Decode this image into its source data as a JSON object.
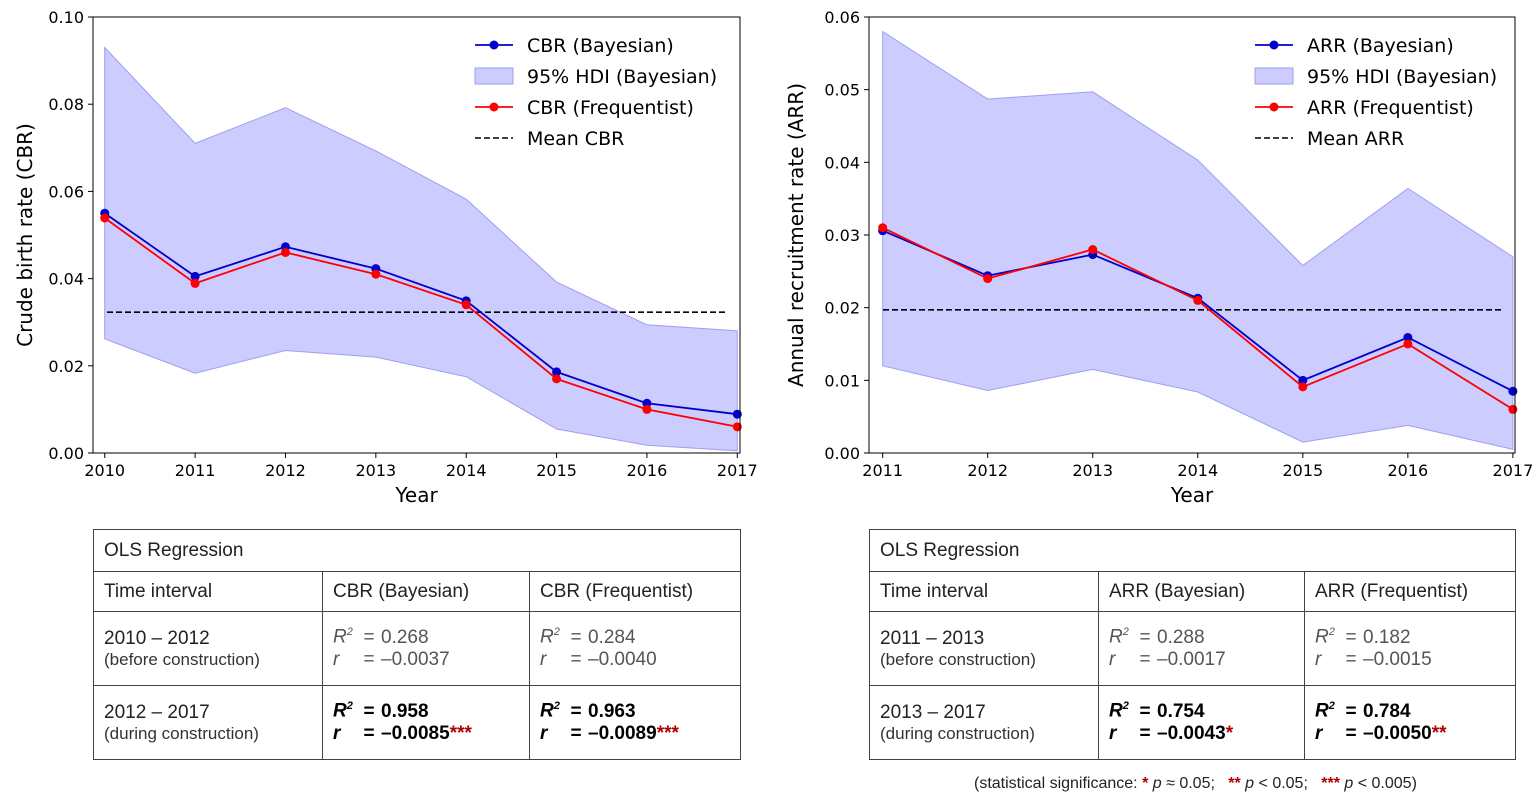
{
  "chart_data": [
    {
      "type": "line",
      "ylabel": "Crude birth rate (CBR)",
      "xlabel": "Year",
      "x": [
        2010,
        2011,
        2012,
        2013,
        2014,
        2015,
        2016,
        2017
      ],
      "xlim": [
        2009.87,
        2017.03
      ],
      "ylim": [
        0.0,
        0.1
      ],
      "yticks": [
        0.0,
        0.02,
        0.04,
        0.06,
        0.08,
        0.1
      ],
      "ytick_labels": [
        "0.00",
        "0.02",
        "0.04",
        "0.06",
        "0.08",
        "0.10"
      ],
      "series": [
        {
          "name": "CBR (Bayesian)",
          "color": "#0000cc",
          "values": [
            0.055,
            0.0405,
            0.0473,
            0.0423,
            0.0349,
            0.0186,
            0.0114,
            0.0089
          ]
        },
        {
          "name": "CBR (Frequentist)",
          "color": "#ff0000",
          "values": [
            0.0539,
            0.0389,
            0.046,
            0.041,
            0.034,
            0.017,
            0.01,
            0.006
          ]
        }
      ],
      "hdi": {
        "name": "95% HDI (Bayesian)",
        "color": "#ccccff",
        "upper": [
          0.093,
          0.071,
          0.0792,
          0.0693,
          0.0582,
          0.0392,
          0.0294,
          0.028
        ],
        "lower": [
          0.0262,
          0.0183,
          0.0235,
          0.022,
          0.0175,
          0.0055,
          0.0018,
          0.0005
        ]
      },
      "mean": {
        "name": "Mean CBR",
        "value": 0.0323
      },
      "legend": [
        "CBR (Bayesian)",
        "95% HDI (Bayesian)",
        "CBR (Frequentist)",
        "Mean CBR"
      ]
    },
    {
      "type": "line",
      "ylabel": "Annual recruitment rate (ARR)",
      "xlabel": "Year",
      "x": [
        2011,
        2012,
        2013,
        2014,
        2015,
        2016,
        2017
      ],
      "xlim": [
        2010.87,
        2017.02
      ],
      "ylim": [
        0.0,
        0.06
      ],
      "yticks": [
        0.0,
        0.01,
        0.02,
        0.03,
        0.04,
        0.05,
        0.06
      ],
      "ytick_labels": [
        "0.00",
        "0.01",
        "0.02",
        "0.03",
        "0.04",
        "0.05",
        "0.06"
      ],
      "series": [
        {
          "name": "ARR (Bayesian)",
          "color": "#0000cc",
          "values": [
            0.0306,
            0.0244,
            0.0273,
            0.0213,
            0.01,
            0.0159,
            0.0085
          ]
        },
        {
          "name": "ARR (Frequentist)",
          "color": "#ff0000",
          "values": [
            0.031,
            0.024,
            0.028,
            0.021,
            0.0091,
            0.015,
            0.006
          ]
        }
      ],
      "hdi": {
        "name": "95% HDI (Bayesian)",
        "color": "#ccccff",
        "upper": [
          0.058,
          0.0487,
          0.0497,
          0.0403,
          0.0258,
          0.0364,
          0.027
        ],
        "lower": [
          0.012,
          0.0086,
          0.0115,
          0.0084,
          0.0015,
          0.0038,
          0.0005
        ]
      },
      "mean": {
        "name": "Mean ARR",
        "value": 0.0197
      },
      "legend": [
        "ARR (Bayesian)",
        "95% HDI (Bayesian)",
        "ARR (Frequentist)",
        "Mean ARR"
      ]
    }
  ],
  "tables": [
    {
      "title": "OLS Regression",
      "headers": [
        "Time interval",
        "CBR (Bayesian)",
        "CBR (Frequentist)"
      ],
      "rows": [
        {
          "interval": "2010 – 2012",
          "note": "(before construction)",
          "bayes_r2": "0.268",
          "bayes_r": "–0.0037",
          "bayes_stars": "",
          "freq_r2": "0.284",
          "freq_r": "–0.0040",
          "freq_stars": ""
        },
        {
          "interval": "2012 – 2017",
          "note": "(during construction)",
          "bayes_r2": "0.958",
          "bayes_r": "–0.0085",
          "bayes_stars": "***",
          "freq_r2": "0.963",
          "freq_r": "–0.0089",
          "freq_stars": "***"
        }
      ]
    },
    {
      "title": "OLS Regression",
      "headers": [
        "Time interval",
        "ARR (Bayesian)",
        "ARR (Frequentist)"
      ],
      "rows": [
        {
          "interval": "2011 – 2013",
          "note": "(before construction)",
          "bayes_r2": "0.288",
          "bayes_r": "–0.0017",
          "bayes_stars": "",
          "freq_r2": "0.182",
          "freq_r": "–0.0015",
          "freq_stars": ""
        },
        {
          "interval": "2013 – 2017",
          "note": "(during construction)",
          "bayes_r2": "0.754",
          "bayes_r": "–0.0043",
          "bayes_stars": "*",
          "freq_r2": "0.784",
          "freq_r": "–0.0050",
          "freq_stars": "**"
        }
      ]
    }
  ],
  "stat_labels": {
    "r2_symbol": "R",
    "r2_power": "2",
    "r_symbol": "r",
    "equals": "="
  },
  "footnote": {
    "prefix": "(statistical significance: ",
    "s1": "*",
    "t1a": " ",
    "t1p": "p",
    "t1b": " ≈ 0.05;",
    "s2": "**",
    "t2a": " ",
    "t2p": "p",
    "t2b": " < 0.05;",
    "s3": "***",
    "t3a": " ",
    "t3p": "p",
    "t3b": " < 0.005)"
  }
}
